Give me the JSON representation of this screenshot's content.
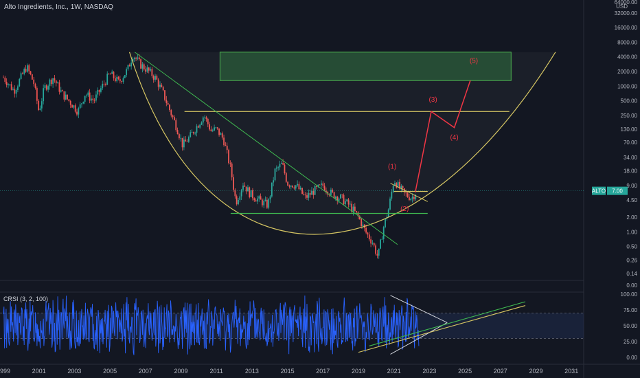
{
  "header": {
    "title": "Alto Ingredients, Inc., 1W, NASDAQ"
  },
  "indicator": {
    "title": "CRSI (3, 2, 100)"
  },
  "colors": {
    "background": "#131722",
    "candle_up": "#26a69a",
    "candle_down": "#ef5350",
    "cup": "#d6c663",
    "resistance": "#d6c663",
    "support": "#3fb950",
    "trendline": "#3fb950",
    "wave": "#f23645",
    "target_box": "#2e6b3e",
    "crsi_line": "#2962ff",
    "price_badge": "#26a69a"
  },
  "chart_data": [
    {
      "type": "line",
      "title": "Alto Ingredients, Inc., 1W, NASDAQ",
      "scale": "log",
      "currency": "USD",
      "y_ticks": [
        "64000.00",
        "32000.00",
        "16000.00",
        "8000.00",
        "4000.00",
        "2000.00",
        "1000.00",
        "500.00",
        "250.00",
        "130.00",
        "70.00",
        "34.00",
        "18.00",
        "9.00",
        "4.50",
        "2.00",
        "1.00",
        "0.50",
        "0.26",
        "0.14",
        "0.00"
      ],
      "x_ticks": [
        "1999",
        "2001",
        "2003",
        "2005",
        "2007",
        "2009",
        "2011",
        "2013",
        "2015",
        "2017",
        "2019",
        "2021",
        "2023",
        "2025",
        "2027",
        "2029",
        "2031"
      ],
      "current_price": {
        "label": "ALTO",
        "value": "7.00"
      },
      "price_path": [
        [
          1999.0,
          1500
        ],
        [
          1999.6,
          800
        ],
        [
          2000.3,
          2500
        ],
        [
          2000.7,
          1200
        ],
        [
          2001.0,
          300
        ],
        [
          2001.3,
          900
        ],
        [
          2001.8,
          1500
        ],
        [
          2002.3,
          700
        ],
        [
          2002.8,
          450
        ],
        [
          2003.2,
          300
        ],
        [
          2003.6,
          700
        ],
        [
          2004.1,
          500
        ],
        [
          2004.5,
          900
        ],
        [
          2005.0,
          1800
        ],
        [
          2005.5,
          1200
        ],
        [
          2006.0,
          2200
        ],
        [
          2006.3,
          4500
        ],
        [
          2006.7,
          2800
        ],
        [
          2007.2,
          2000
        ],
        [
          2007.6,
          1400
        ],
        [
          2008.0,
          700
        ],
        [
          2008.4,
          300
        ],
        [
          2008.8,
          130
        ],
        [
          2009.1,
          60
        ],
        [
          2009.5,
          90
        ],
        [
          2009.9,
          150
        ],
        [
          2010.3,
          250
        ],
        [
          2010.7,
          120
        ],
        [
          2011.0,
          130
        ],
        [
          2011.4,
          80
        ],
        [
          2011.8,
          20
        ],
        [
          2012.1,
          4
        ],
        [
          2012.5,
          10
        ],
        [
          2012.9,
          6
        ],
        [
          2013.4,
          4.5
        ],
        [
          2013.9,
          3.5
        ],
        [
          2014.3,
          18
        ],
        [
          2014.7,
          25
        ],
        [
          2015.0,
          10
        ],
        [
          2015.5,
          9
        ],
        [
          2016.0,
          5
        ],
        [
          2016.5,
          7
        ],
        [
          2017.0,
          9
        ],
        [
          2017.5,
          6
        ],
        [
          2018.0,
          5
        ],
        [
          2018.5,
          3.5
        ],
        [
          2019.0,
          2
        ],
        [
          2019.4,
          1.0
        ],
        [
          2019.8,
          0.6
        ],
        [
          2020.1,
          0.3
        ],
        [
          2020.4,
          1.2
        ],
        [
          2020.7,
          3
        ],
        [
          2021.0,
          12
        ],
        [
          2021.3,
          8
        ],
        [
          2021.6,
          6
        ],
        [
          2022.0,
          5
        ],
        [
          2022.3,
          7
        ]
      ],
      "projection_path": [
        [
          2022.2,
          6.5
        ],
        [
          2023.1,
          300
        ],
        [
          2024.4,
          140
        ],
        [
          2025.3,
          1300
        ]
      ],
      "wave_labels": [
        {
          "label": "(1)",
          "x": 2020.9,
          "y": 20
        },
        {
          "label": "(2)",
          "x": 2021.6,
          "y": 2.7
        },
        {
          "label": "(3)",
          "x": 2023.2,
          "y": 480
        },
        {
          "label": "(4)",
          "x": 2024.4,
          "y": 80
        },
        {
          "label": "(5)",
          "x": 2025.5,
          "y": 3000
        }
      ],
      "levels": [
        {
          "name": "resistance",
          "value": 300,
          "x_start": 2009.2,
          "x_end": 2027.5
        },
        {
          "name": "support",
          "value": 2.4,
          "x_start": 2011.8,
          "x_end": 2022.9
        },
        {
          "name": "flag-top",
          "value": 6.8,
          "x_start": 2021.0,
          "x_end": 2022.9
        }
      ],
      "target_zone": {
        "x_start": 2011.2,
        "x_end": 2027.6,
        "y_low": 1300,
        "y_high": 5000
      },
      "cup": {
        "left_x": 2006.1,
        "left_y": 5000,
        "bottom_x": 2016.0,
        "bottom_y": 0.2,
        "right_x": 2030.1,
        "right_y": 5000
      },
      "trendline": {
        "x1": 2006.4,
        "y1": 5000,
        "x2": 2021.2,
        "y2": 0.55
      },
      "flag_line": {
        "x1": 2020.8,
        "y1": 10,
        "x2": 2022.9,
        "y2": 4.2
      }
    },
    {
      "type": "line",
      "title": "CRSI (3, 2, 100)",
      "y_ticks": [
        "100.00",
        "75.00",
        "50.00",
        "25.00",
        "0.00"
      ],
      "ylim": [
        0,
        100
      ],
      "band": [
        30,
        70
      ],
      "x_range": [
        1999.0,
        2022.4
      ],
      "triangle": {
        "top": [
          [
            2020.8,
            98
          ],
          [
            2024.0,
            55
          ]
        ],
        "bottom": [
          [
            2020.8,
            5
          ],
          [
            2024.0,
            55
          ]
        ]
      },
      "rising_lines": [
        {
          "x1": 2019.0,
          "y1": 8,
          "x2": 2028.4,
          "y2": 82
        },
        {
          "x1": 2019.6,
          "y1": 18,
          "x2": 2028.4,
          "y2": 88
        }
      ]
    }
  ]
}
